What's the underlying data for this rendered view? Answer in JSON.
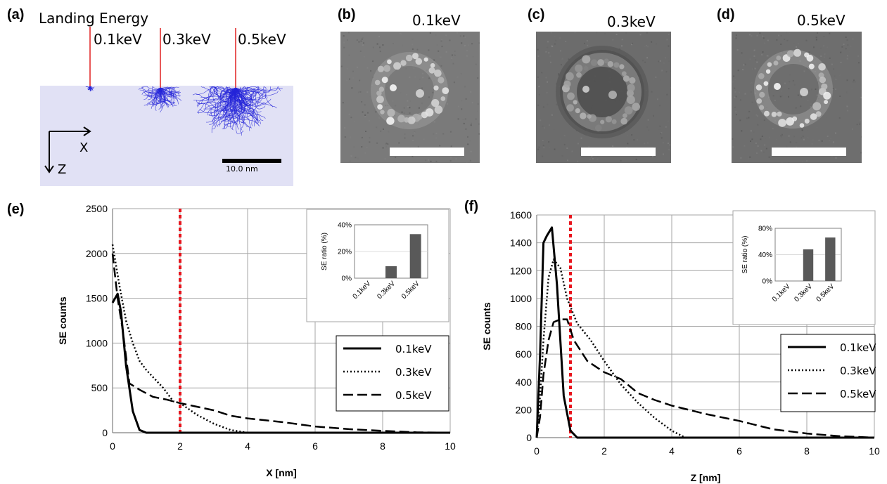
{
  "panel_a": {
    "letter": "(a)",
    "title": "Landing Energy",
    "energies": [
      "0.1keV",
      "0.3keV",
      "0.5keV"
    ],
    "axis_x": "X",
    "axis_z": "Z",
    "scale_label": "10.0 nm"
  },
  "sem_images": [
    {
      "letter": "(b)",
      "label": "0.1keV"
    },
    {
      "letter": "(c)",
      "label": "0.3keV"
    },
    {
      "letter": "(d)",
      "label": "0.5keV"
    }
  ],
  "colors": {
    "marker_line": "#e02020",
    "scatter_blue": "#2424d8",
    "red_dash": "#e8141c",
    "inset_bar": "#595959",
    "grid": "#a6a6a6"
  },
  "chart_data": [
    {
      "id": "e",
      "letter": "(e)",
      "type": "line",
      "xlabel": "X [nm]",
      "ylabel": "SE counts",
      "xlim": [
        0,
        10
      ],
      "ylim": [
        0,
        2500
      ],
      "xticks": [
        0,
        2,
        4,
        6,
        8,
        10
      ],
      "yticks": [
        0,
        500,
        1000,
        1500,
        2000,
        2500
      ],
      "grid": true,
      "legend_position": "bottom-right",
      "vline_x": 2,
      "series": [
        {
          "name": "0.1keV",
          "style": "solid",
          "x": [
            0,
            0.15,
            0.25,
            0.4,
            0.6,
            0.8,
            1.0,
            2,
            4,
            6,
            8,
            10
          ],
          "y": [
            1450,
            1550,
            1350,
            750,
            240,
            30,
            0,
            0,
            0,
            0,
            0,
            0
          ]
        },
        {
          "name": "0.3keV",
          "style": "dotted",
          "x": [
            0,
            0.2,
            0.4,
            0.6,
            0.8,
            1.0,
            1.2,
            1.5,
            1.8,
            2.0,
            2.5,
            3.0,
            3.5,
            4.0,
            5,
            6,
            8,
            10
          ],
          "y": [
            2100,
            1650,
            1250,
            1000,
            800,
            700,
            620,
            500,
            350,
            330,
            200,
            100,
            30,
            0,
            0,
            0,
            0,
            0
          ]
        },
        {
          "name": "0.5keV",
          "style": "dashed",
          "x": [
            0,
            0.15,
            0.3,
            0.5,
            0.8,
            1.2,
            1.6,
            2.0,
            2.5,
            3.0,
            3.5,
            4.0,
            5.0,
            6.0,
            7.0,
            8.0,
            9.0,
            10
          ],
          "y": [
            2000,
            1500,
            1150,
            550,
            480,
            400,
            370,
            330,
            290,
            250,
            190,
            160,
            120,
            70,
            40,
            20,
            5,
            0
          ]
        }
      ],
      "inset": {
        "type": "bar",
        "ylabel": "SE ratio (%)",
        "categories": [
          "0.1keV",
          "0.3keV",
          "0.5keV"
        ],
        "values": [
          0,
          9,
          33
        ],
        "ylim": [
          0,
          40
        ],
        "yticks": [
          "0%",
          "20%",
          "40%"
        ]
      }
    },
    {
      "id": "f",
      "letter": "(f)",
      "type": "line",
      "xlabel": "Z [nm]",
      "ylabel": "SE counts",
      "xlim": [
        0,
        10
      ],
      "ylim": [
        0,
        1600
      ],
      "xticks": [
        0,
        2,
        4,
        6,
        8,
        10
      ],
      "yticks": [
        0,
        200,
        400,
        600,
        800,
        1000,
        1200,
        1400,
        1600
      ],
      "grid": true,
      "legend_position": "bottom-right",
      "vline_x": 1,
      "series": [
        {
          "name": "0.1keV",
          "style": "solid",
          "x": [
            0,
            0.1,
            0.2,
            0.3,
            0.45,
            0.6,
            0.8,
            1.0,
            1.2,
            2,
            4,
            6,
            8,
            10
          ],
          "y": [
            0,
            600,
            1400,
            1450,
            1510,
            1100,
            300,
            50,
            0,
            0,
            0,
            0,
            0,
            0
          ]
        },
        {
          "name": "0.3keV",
          "style": "dotted",
          "x": [
            0,
            0.1,
            0.2,
            0.35,
            0.5,
            0.7,
            0.9,
            1.2,
            1.6,
            2.0,
            2.5,
            3.0,
            3.5,
            4.0,
            4.4,
            5,
            6,
            8,
            10
          ],
          "y": [
            0,
            300,
            700,
            1150,
            1280,
            1220,
            1000,
            820,
            700,
            550,
            380,
            250,
            140,
            50,
            0,
            0,
            0,
            0,
            0
          ]
        },
        {
          "name": "0.5keV",
          "style": "dashed",
          "x": [
            0,
            0.1,
            0.2,
            0.35,
            0.5,
            0.7,
            0.9,
            1.1,
            1.5,
            2.0,
            2.5,
            3.0,
            3.5,
            4.0,
            5.0,
            6.0,
            7.0,
            8.0,
            9.0,
            10
          ],
          "y": [
            0,
            150,
            450,
            700,
            830,
            850,
            850,
            700,
            550,
            470,
            420,
            320,
            270,
            230,
            170,
            120,
            60,
            30,
            10,
            0
          ]
        }
      ],
      "inset": {
        "type": "bar",
        "ylabel": "SE ratio (%)",
        "categories": [
          "0.1keV",
          "0.3keV",
          "0.5keV"
        ],
        "values": [
          0,
          48,
          66
        ],
        "ylim": [
          0,
          80
        ],
        "yticks": [
          "0%",
          "40%",
          "80%"
        ]
      }
    }
  ]
}
